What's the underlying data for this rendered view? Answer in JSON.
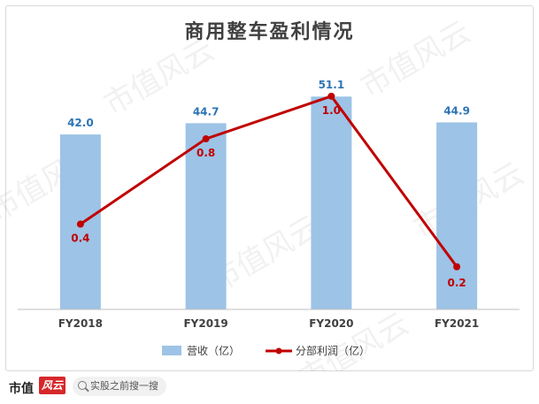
{
  "chart_data": {
    "type": "bar",
    "title": "商用整车盈利情况",
    "categories": [
      "FY2018",
      "FY2019",
      "FY2020",
      "FY2021"
    ],
    "series": [
      {
        "name": "营收（亿）",
        "type": "bar",
        "values": [
          42.0,
          44.7,
          51.1,
          44.9
        ],
        "color": "#9dc3e6",
        "label_color": "#2e75b6"
      },
      {
        "name": "分部利润（亿）",
        "type": "line",
        "values": [
          0.4,
          0.8,
          1.0,
          0.2
        ],
        "color": "#c00000",
        "label_color": "#c00000"
      }
    ],
    "bar_axis_range": [
      0,
      52
    ],
    "line_axis_range": [
      0,
      1.02
    ],
    "grid": false,
    "legend_position": "bottom"
  },
  "watermark": "市值风云",
  "footer": {
    "brand_text": "市值",
    "brand_logo": "风云",
    "search_placeholder": "实股之前搜一搜"
  }
}
